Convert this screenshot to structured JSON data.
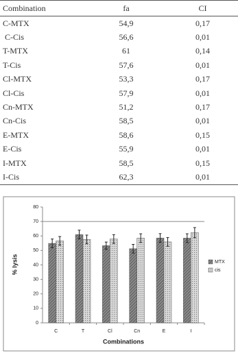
{
  "table": {
    "header": [
      "Combination",
      "fa",
      "CI"
    ],
    "rows": [
      [
        "C-MTX",
        "54,9",
        "0,17"
      ],
      [
        " C-Cis",
        "56,6",
        "0,01"
      ],
      [
        "T-MTX",
        "61",
        "0,14"
      ],
      [
        "T-Cis",
        "57,6",
        "0,01"
      ],
      [
        "Cl-MTX",
        "53,3",
        "0,17"
      ],
      [
        "Cl-Cis",
        "57,9",
        "0,01"
      ],
      [
        "Cn-MTX",
        "51,2",
        "0,17"
      ],
      [
        "Cn-Cis",
        "58,5",
        "0,01"
      ],
      [
        "E-MTX",
        "58,6",
        "0,15"
      ],
      [
        "E-Cis",
        "55,9",
        "0,01"
      ],
      [
        "I-MTX",
        "58,5",
        "0,15"
      ],
      [
        "I-Cis",
        "62,3",
        "0,01"
      ]
    ]
  },
  "chart_data": {
    "type": "bar",
    "y_label": "% lysis",
    "x_label": "Combinations",
    "categories": [
      "C",
      "T",
      "Cl",
      "Cn",
      "E",
      "I"
    ],
    "series": [
      {
        "name": "MTX",
        "color": "#6e6e6e",
        "values": [
          54.9,
          61,
          53.3,
          51.2,
          58.6,
          58.5
        ],
        "errors": [
          3,
          3,
          2.5,
          3,
          3,
          3
        ]
      },
      {
        "name": "cis",
        "color": "#c8c8c8",
        "values": [
          56.6,
          57.6,
          57.9,
          58.5,
          55.9,
          62.3
        ],
        "errors": [
          3,
          3,
          3,
          3,
          3,
          3.5
        ]
      }
    ],
    "ylim": [
      0,
      80
    ],
    "yticks": [
      0,
      10,
      20,
      30,
      40,
      50,
      60,
      70,
      80
    ],
    "hline": 70,
    "legend": "right"
  }
}
